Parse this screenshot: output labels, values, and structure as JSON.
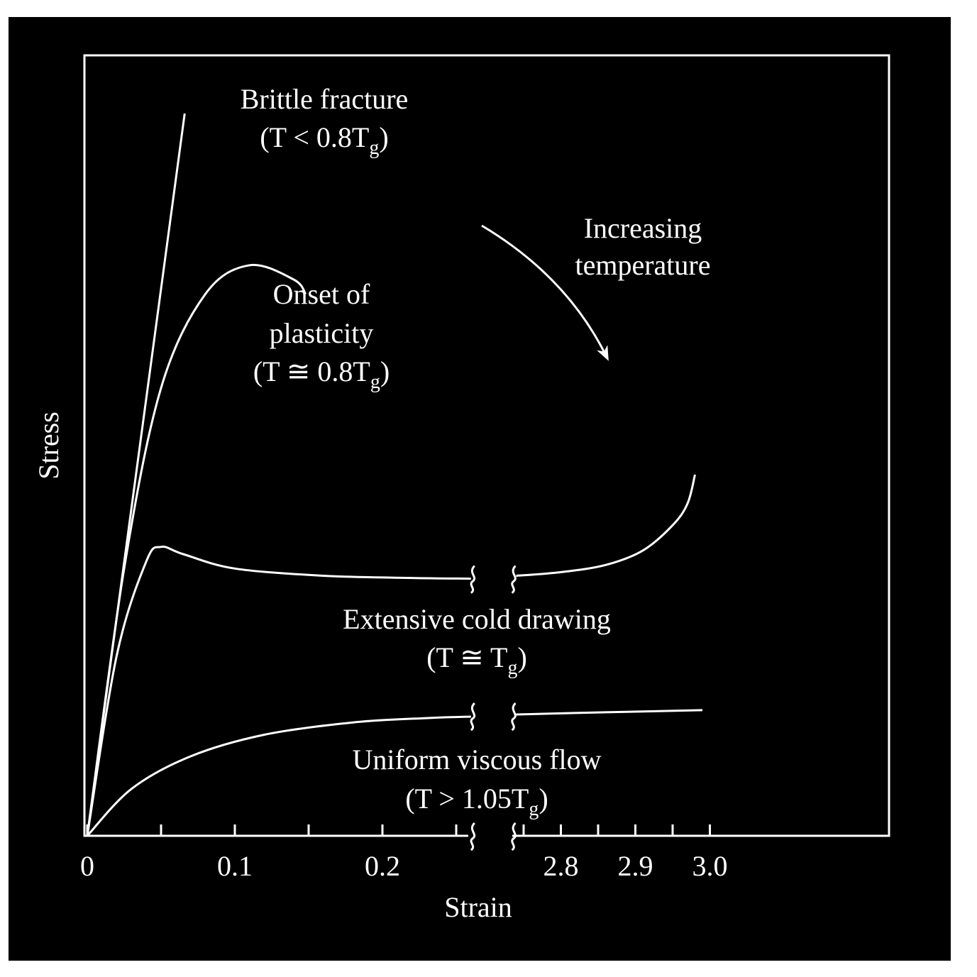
{
  "chart_data": {
    "type": "line",
    "xlabel": "Strain",
    "ylabel": "Stress",
    "x_ticks": [
      "0",
      "0.1",
      "0.2",
      "2.8",
      "2.9",
      "3.0"
    ],
    "x_axis_break": {
      "from": 0.26,
      "to": 2.74
    },
    "xlim": [
      0,
      3.0
    ],
    "y_scale": "qualitative, no tick labels",
    "grid": false,
    "background": "#000000",
    "foreground": "#ffffff",
    "series": [
      {
        "line1": "Brittle fracture",
        "line2_prefix": "(T < 0.8T",
        "subscript": "g",
        "line2_suffix": ")",
        "points": [
          [
            0,
            0
          ],
          [
            0.066,
            1.0
          ]
        ]
      },
      {
        "line1": "Onset of",
        "line2": "plasticity",
        "line3_prefix": "(T ≅ 0.8T",
        "subscript": "g",
        "line3_suffix": ")",
        "points": [
          [
            0,
            0
          ],
          [
            0.025,
            0.37
          ],
          [
            0.05,
            0.62
          ],
          [
            0.08,
            0.75
          ],
          [
            0.11,
            0.79
          ],
          [
            0.14,
            0.77
          ],
          [
            0.148,
            0.75
          ]
        ]
      },
      {
        "line1": "Extensive cold drawing",
        "line2_prefix": "(T ≅ T",
        "subscript": "g",
        "line2_suffix": ")",
        "points": [
          [
            0,
            0
          ],
          [
            0.02,
            0.25
          ],
          [
            0.04,
            0.38
          ],
          [
            0.05,
            0.4
          ],
          [
            0.065,
            0.39
          ],
          [
            0.1,
            0.37
          ],
          [
            0.16,
            0.36
          ],
          [
            0.22,
            0.357
          ],
          [
            0.26,
            0.356
          ],
          [
            2.74,
            0.36
          ],
          [
            2.8,
            0.365
          ],
          [
            2.86,
            0.375
          ],
          [
            2.91,
            0.395
          ],
          [
            2.95,
            0.43
          ],
          [
            2.97,
            0.46
          ],
          [
            2.98,
            0.5
          ]
        ]
      },
      {
        "line1": "Uniform viscous flow",
        "line2_prefix": "(T > 1.05T",
        "subscript": "g",
        "line2_suffix": ")",
        "points": [
          [
            0,
            0
          ],
          [
            0.03,
            0.065
          ],
          [
            0.07,
            0.11
          ],
          [
            0.12,
            0.14
          ],
          [
            0.18,
            0.157
          ],
          [
            0.23,
            0.163
          ],
          [
            0.26,
            0.165
          ],
          [
            2.74,
            0.168
          ],
          [
            2.86,
            0.171
          ],
          [
            2.99,
            0.174
          ]
        ]
      }
    ],
    "annotations": [
      {
        "line1": "Increasing",
        "line2": "temperature"
      }
    ]
  }
}
